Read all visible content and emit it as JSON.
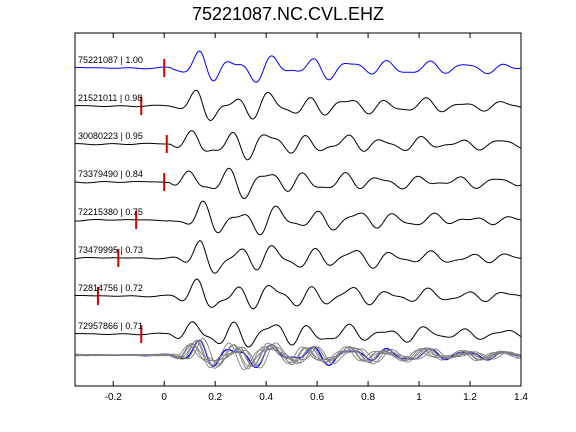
{
  "chart_data": {
    "type": "line",
    "title": "75221087.NC.CVL.EHZ",
    "xlabel": "",
    "ylabel": "",
    "xlim": [
      -0.35,
      1.4
    ],
    "x_ticks": [
      "-0.2",
      "0",
      "0.2",
      "0.4",
      "0.6",
      "0.8",
      "1",
      "1.2",
      "1.4"
    ],
    "x_tick_values": [
      -0.2,
      0,
      0.2,
      0.4,
      0.6,
      0.8,
      1.0,
      1.2,
      1.4
    ],
    "grid": false,
    "traces": [
      {
        "label": "75221087 | 1.00",
        "pick_time": 0.0,
        "color": "#0000ff",
        "seed": 1
      },
      {
        "label": "21521011 | 0.98",
        "pick_time": -0.09,
        "color": "#000000",
        "seed": 2
      },
      {
        "label": "30080223 | 0.95",
        "pick_time": 0.01,
        "color": "#000000",
        "seed": 3
      },
      {
        "label": "73379490 | 0.84",
        "pick_time": 0.0,
        "color": "#000000",
        "seed": 4
      },
      {
        "label": "72215380 | 0.75",
        "pick_time": -0.11,
        "color": "#000000",
        "seed": 5
      },
      {
        "label": "73479995 | 0.73",
        "pick_time": -0.18,
        "color": "#000000",
        "seed": 6
      },
      {
        "label": "72814756 | 0.72",
        "pick_time": -0.26,
        "color": "#000000",
        "seed": 7
      },
      {
        "label": "72957866 | 0.71",
        "pick_time": -0.09,
        "color": "#000000",
        "seed": 8
      }
    ],
    "stack": {
      "label": "",
      "colors": [
        "#0000ff",
        "#808080"
      ]
    },
    "pick_color": "#cc0000"
  }
}
